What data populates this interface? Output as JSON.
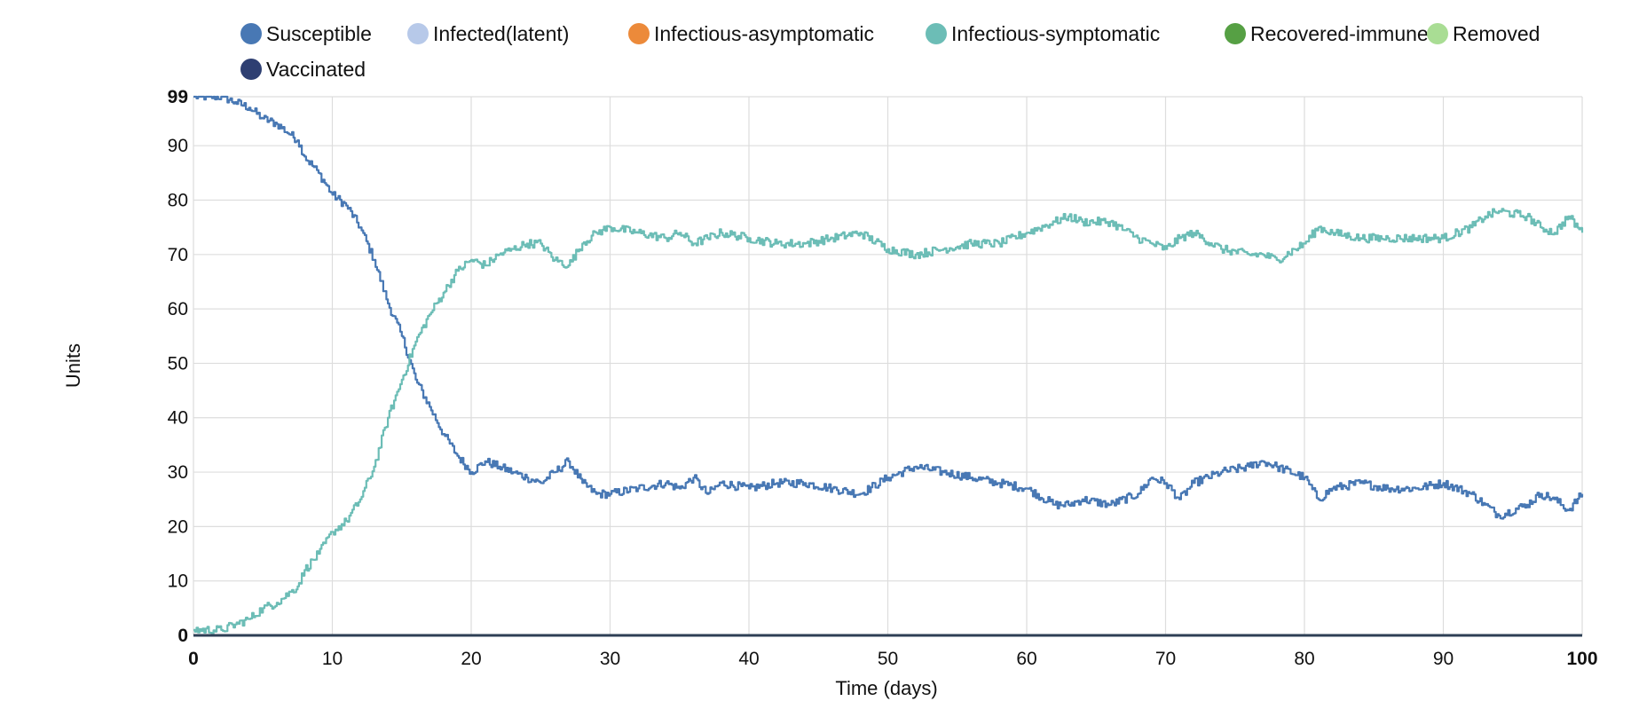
{
  "chart_data": {
    "type": "line",
    "title": "",
    "xlabel": "Time (days)",
    "ylabel": "Units",
    "xlim": [
      0,
      100
    ],
    "ylim": [
      0,
      99
    ],
    "x_ticks": [
      0,
      10,
      20,
      30,
      40,
      50,
      60,
      70,
      80,
      90,
      100
    ],
    "x_tick_labels": [
      "0",
      "10",
      "20",
      "30",
      "40",
      "50",
      "60",
      "70",
      "80",
      "90",
      "100"
    ],
    "y_ticks": [
      0,
      10,
      20,
      30,
      40,
      50,
      60,
      70,
      80,
      90,
      99
    ],
    "y_tick_labels": [
      "0",
      "10",
      "20",
      "30",
      "40",
      "50",
      "60",
      "70",
      "80",
      "90",
      "99"
    ],
    "grid": true,
    "legend_position": "top",
    "legend": [
      {
        "name": "Susceptible",
        "color": "#4878b4"
      },
      {
        "name": "Infected(latent)",
        "color": "#b7c9e9"
      },
      {
        "name": "Infectious-asymptomatic",
        "color": "#ec8a3a"
      },
      {
        "name": "Infectious-symptomatic",
        "color": "#6cbdb6"
      },
      {
        "name": "Recovered-immune",
        "color": "#56a044"
      },
      {
        "name": "Removed",
        "color": "#a9dd94"
      },
      {
        "name": "Vaccinated",
        "color": "#2e3f72"
      }
    ],
    "series": [
      {
        "name": "Susceptible",
        "color": "#4878b4",
        "x": [
          0,
          2,
          3,
          4,
          5,
          6,
          7,
          7.5,
          8,
          9,
          10,
          11,
          12,
          13,
          14,
          15,
          16,
          17,
          18,
          19,
          20,
          21,
          22,
          23,
          24,
          25,
          26,
          27,
          28,
          29,
          30,
          32,
          34,
          35,
          36,
          37,
          38,
          40,
          42,
          44,
          46,
          48,
          50,
          52,
          54,
          56,
          58,
          60,
          62,
          63,
          64,
          66,
          68,
          69,
          70,
          71,
          72,
          74,
          76,
          77,
          78,
          80,
          81,
          82,
          84,
          86,
          88,
          90,
          92,
          93,
          94,
          96,
          97,
          98,
          99,
          100
        ],
        "y": [
          99,
          99,
          98,
          97,
          95,
          94,
          92,
          91,
          88,
          85,
          81,
          79,
          75,
          69,
          61,
          55,
          47,
          42,
          37,
          33,
          30,
          32,
          31,
          30,
          29,
          28,
          30,
          32,
          28,
          26,
          26,
          27,
          28,
          27,
          29,
          26,
          28,
          27,
          28,
          28,
          27,
          26,
          29,
          31,
          30,
          29,
          28,
          27,
          24,
          24,
          25,
          24,
          26,
          29,
          28,
          25,
          28,
          30,
          31,
          32,
          31,
          29,
          25,
          27,
          28,
          27,
          27,
          28,
          26,
          24,
          22,
          24,
          26,
          25,
          23,
          26
        ]
      },
      {
        "name": "Infectious-symptomatic",
        "color": "#6cbdb6",
        "x": [
          0,
          2,
          3,
          4,
          5,
          6,
          7,
          7.5,
          8,
          9,
          10,
          11,
          12,
          13,
          14,
          15,
          16,
          17,
          18,
          19,
          20,
          21,
          22,
          23,
          24,
          25,
          26,
          27,
          28,
          29,
          30,
          32,
          34,
          35,
          36,
          37,
          38,
          40,
          42,
          44,
          46,
          48,
          50,
          52,
          54,
          56,
          58,
          60,
          62,
          63,
          64,
          66,
          68,
          69,
          70,
          71,
          72,
          74,
          76,
          77,
          78,
          80,
          81,
          82,
          84,
          86,
          88,
          90,
          92,
          93,
          94,
          96,
          97,
          98,
          99,
          100
        ],
        "y": [
          1,
          1,
          2,
          3,
          5,
          6,
          8,
          9,
          12,
          15,
          19,
          21,
          25,
          31,
          40,
          47,
          54,
          59,
          63,
          67,
          69,
          68,
          70,
          71,
          72,
          72,
          69,
          68,
          72,
          74,
          75,
          74,
          73,
          74,
          72,
          73,
          74,
          73,
          72,
          72,
          73,
          74,
          71,
          70,
          71,
          72,
          72,
          74,
          76,
          77,
          76,
          76,
          73,
          72,
          71,
          73,
          74,
          71,
          70,
          70,
          69,
          72,
          75,
          74,
          73,
          73,
          73,
          73,
          75,
          77,
          78,
          77,
          75,
          74,
          77,
          74
        ]
      },
      {
        "name": "Infected(latent)",
        "color": "#b7c9e9",
        "x": [
          0,
          100
        ],
        "y": [
          0,
          0
        ]
      },
      {
        "name": "Infectious-asymptomatic",
        "color": "#ec8a3a",
        "x": [
          0,
          100
        ],
        "y": [
          0,
          0
        ]
      },
      {
        "name": "Recovered-immune",
        "color": "#56a044",
        "x": [
          0,
          100
        ],
        "y": [
          0,
          0
        ]
      },
      {
        "name": "Removed",
        "color": "#a9dd94",
        "x": [
          0,
          100
        ],
        "y": [
          0,
          0
        ]
      },
      {
        "name": "Vaccinated",
        "color": "#2e3f72",
        "x": [
          0,
          100
        ],
        "y": [
          0,
          0
        ]
      }
    ]
  }
}
